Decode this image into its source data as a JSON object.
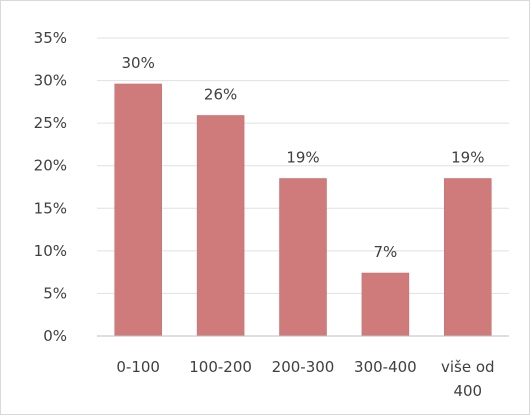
{
  "chart_data": {
    "type": "bar",
    "categories": [
      [
        "0-100"
      ],
      [
        "100-200"
      ],
      [
        "200-300"
      ],
      [
        "300-400"
      ],
      [
        "više od",
        "400"
      ]
    ],
    "values": [
      29.6,
      25.9,
      18.5,
      7.4,
      18.5
    ],
    "data_labels": [
      "30%",
      "26%",
      "19%",
      "7%",
      "19%"
    ],
    "ylim": [
      0,
      35
    ],
    "yticks": [
      0,
      5,
      10,
      15,
      20,
      25,
      30,
      35
    ],
    "ytick_labels": [
      "0%",
      "5%",
      "10%",
      "15%",
      "20%",
      "25%",
      "30%",
      "35%"
    ],
    "grid": true,
    "bar_color": "#d07b7b",
    "bar_edge_color": "#c06a6a",
    "grid_color": "#e0e0e0",
    "axis_color": "#bfbfbf"
  }
}
